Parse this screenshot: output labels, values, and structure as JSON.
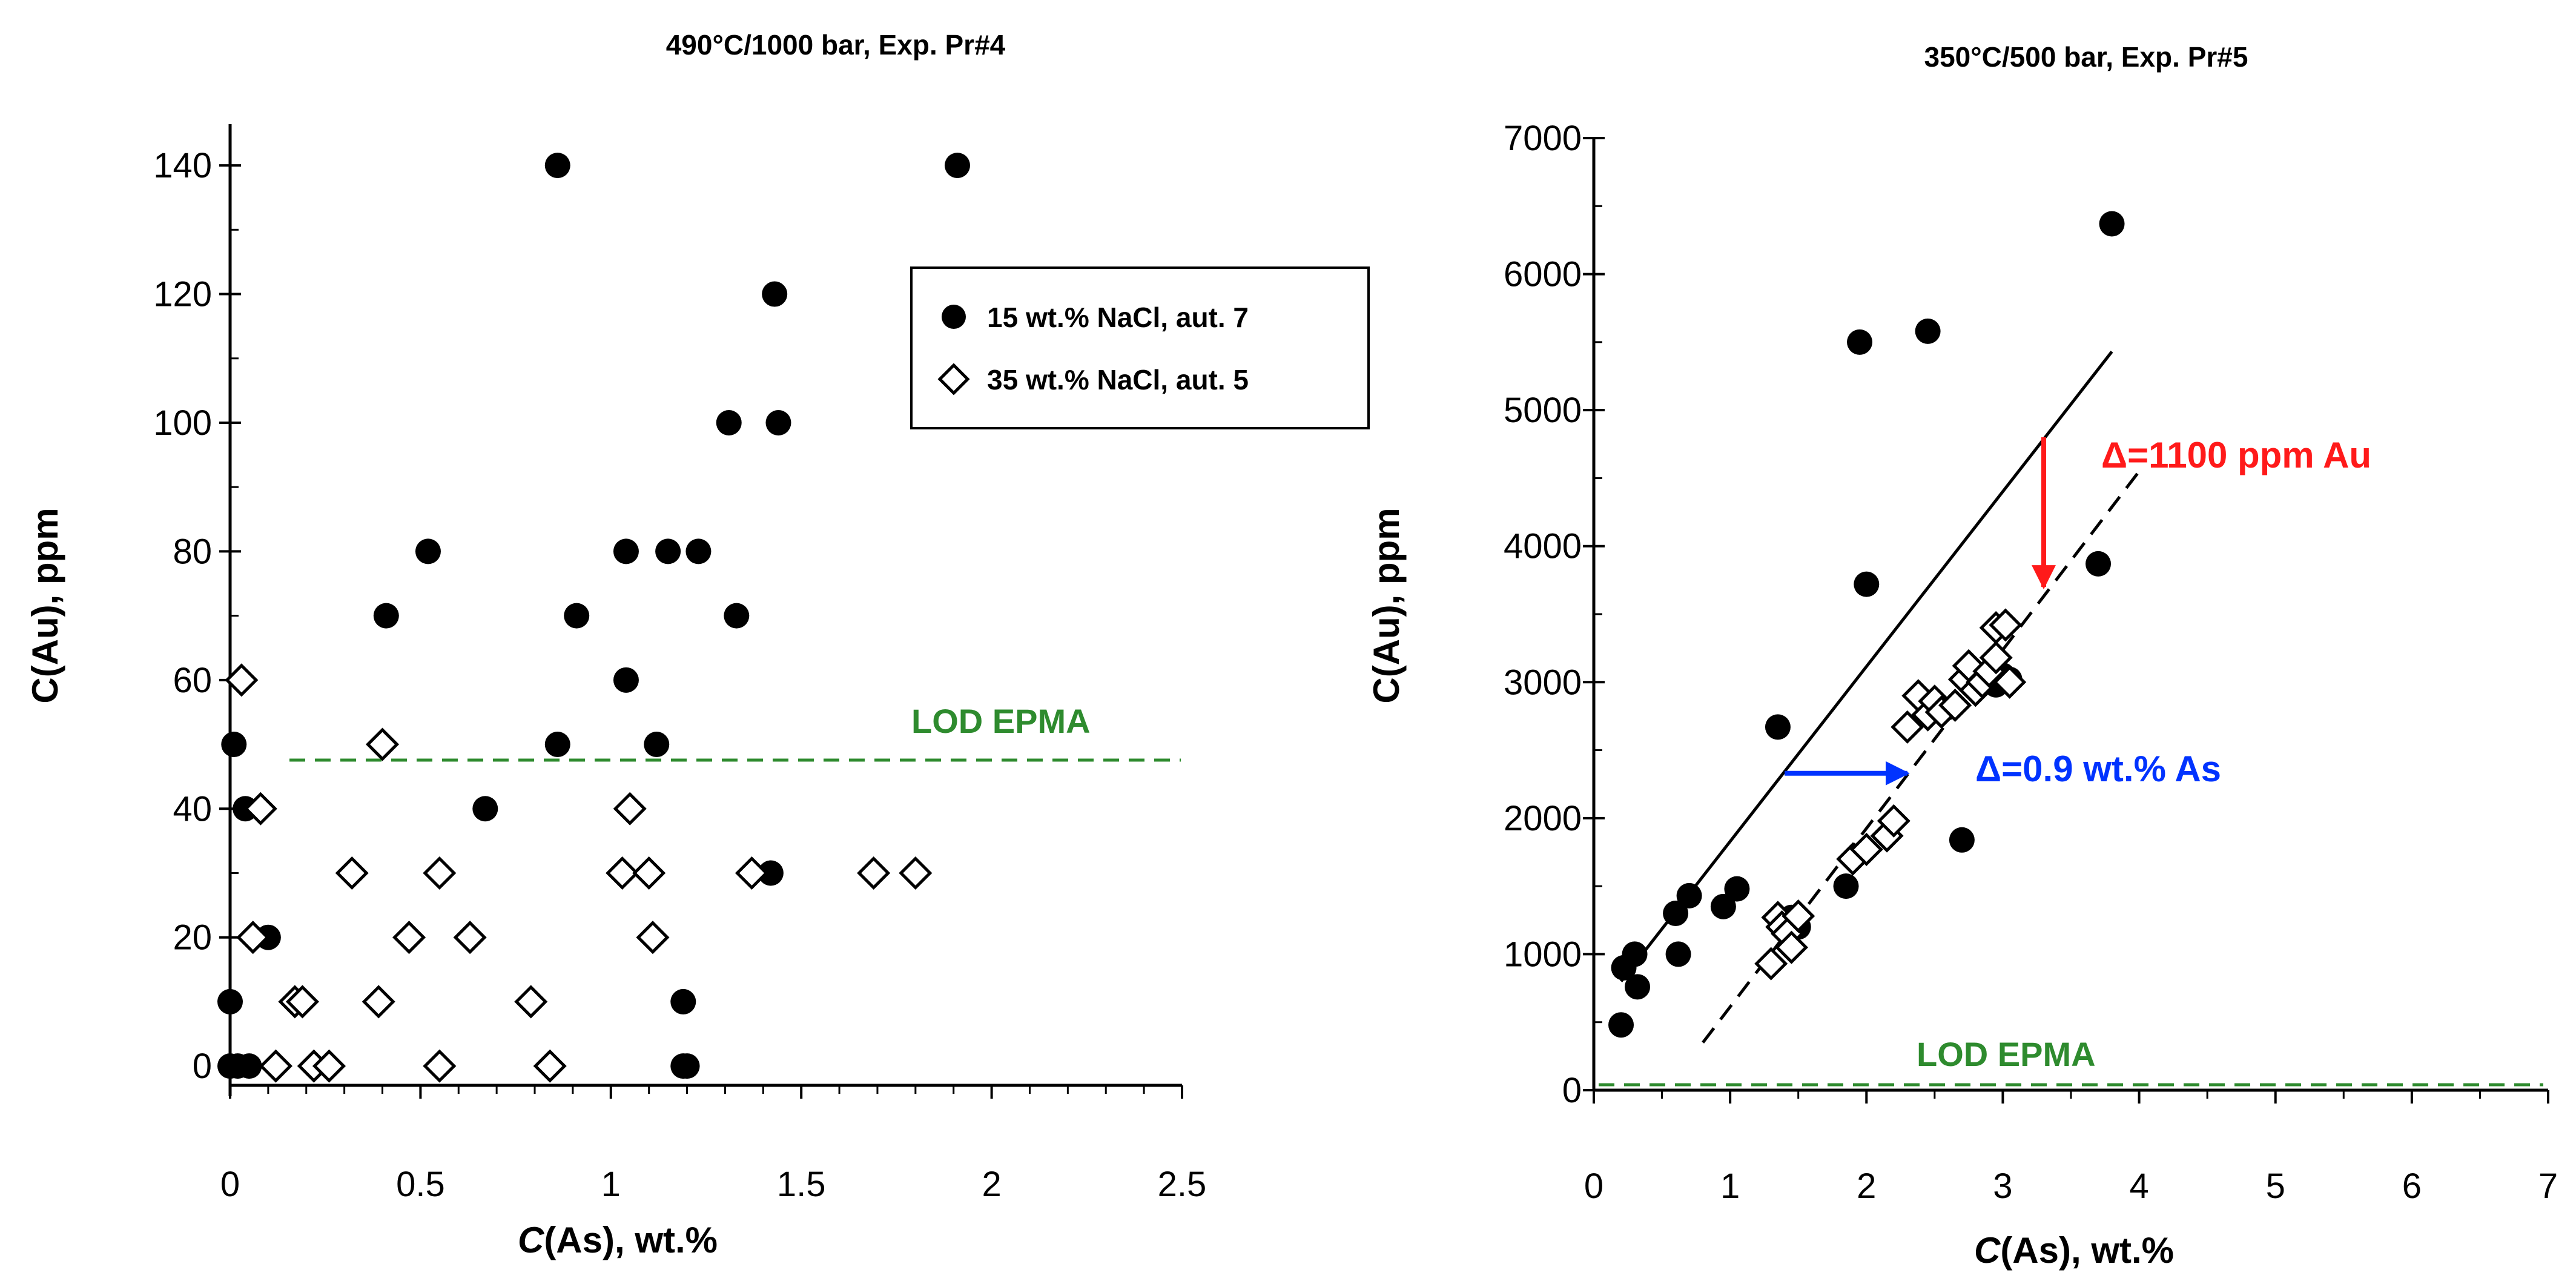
{
  "chart_data": [
    {
      "type": "scatter",
      "title": "490°C/1000 bar, Exp. Pr#4",
      "xlabel": {
        "italic": "C",
        "rest": "(As), wt.%"
      },
      "ylabel": "C(Au), ppm",
      "xlim": [
        0,
        2.5
      ],
      "ylim": [
        -3,
        145
      ],
      "xticks": [
        0,
        0.5,
        1,
        1.5,
        2,
        2.5
      ],
      "xtick_labels": [
        "0",
        "0.5",
        "1",
        "1.5",
        "2",
        "2.5"
      ],
      "yticks": [
        0,
        20,
        40,
        60,
        80,
        100,
        120,
        140
      ],
      "ytick_labels": [
        "0",
        "20",
        "40",
        "60",
        "80",
        "100",
        "120",
        "140"
      ],
      "legend": {
        "position": "upper-right",
        "entries": [
          {
            "marker": "filled-circle",
            "label": "15 wt.% NaCl, aut. 7"
          },
          {
            "marker": "open-diamond",
            "label": "35 wt.% NaCl, aut. 5"
          }
        ]
      },
      "lod": {
        "label": "LOD EPMA",
        "value": 48,
        "color": "#2e8b2e"
      },
      "series": [
        {
          "name": "15 wt.% NaCl, aut. 7",
          "marker": "filled-circle",
          "points": [
            [
              0,
              0
            ],
            [
              0.02,
              0
            ],
            [
              0.05,
              0
            ],
            [
              0,
              10
            ],
            [
              0.01,
              50
            ],
            [
              0.04,
              40
            ],
            [
              0.1,
              20
            ],
            [
              0.41,
              70
            ],
            [
              0.52,
              80
            ],
            [
              0.67,
              40
            ],
            [
              0.86,
              140
            ],
            [
              0.86,
              50
            ],
            [
              0.91,
              70
            ],
            [
              1.04,
              80
            ],
            [
              1.04,
              60
            ],
            [
              1.12,
              50
            ],
            [
              1.15,
              80
            ],
            [
              1.19,
              10
            ],
            [
              1.19,
              0
            ],
            [
              1.2,
              0
            ],
            [
              1.23,
              80
            ],
            [
              1.31,
              100
            ],
            [
              1.33,
              70
            ],
            [
              1.42,
              30
            ],
            [
              1.43,
              120
            ],
            [
              1.44,
              100
            ],
            [
              1.91,
              140
            ]
          ]
        },
        {
          "name": "35 wt.% NaCl, aut. 5",
          "marker": "open-diamond",
          "points": [
            [
              0.03,
              60
            ],
            [
              0.06,
              20
            ],
            [
              0.08,
              40
            ],
            [
              0.12,
              0
            ],
            [
              0.17,
              10
            ],
            [
              0.19,
              10
            ],
            [
              0.22,
              0
            ],
            [
              0.26,
              0
            ],
            [
              0.32,
              30
            ],
            [
              0.39,
              10
            ],
            [
              0.4,
              50
            ],
            [
              0.47,
              20
            ],
            [
              0.55,
              30
            ],
            [
              0.55,
              0
            ],
            [
              0.63,
              20
            ],
            [
              0.79,
              10
            ],
            [
              0.84,
              0
            ],
            [
              1.03,
              30
            ],
            [
              1.05,
              40
            ],
            [
              1.1,
              30
            ],
            [
              1.11,
              20
            ],
            [
              1.37,
              30
            ],
            [
              1.69,
              30
            ],
            [
              1.8,
              30
            ]
          ]
        }
      ]
    },
    {
      "type": "scatter",
      "title": "350°C/500 bar, Exp. Pr#5",
      "xlabel": {
        "italic": "C",
        "rest": "(As), wt.%"
      },
      "ylabel": "C(Au), ppm",
      "xlim": [
        0,
        7
      ],
      "ylim": [
        0,
        7000
      ],
      "xticks": [
        0,
        1,
        2,
        3,
        4,
        5,
        6,
        7
      ],
      "xtick_labels": [
        "0",
        "1",
        "2",
        "3",
        "4",
        "5",
        "6",
        "7"
      ],
      "yticks": [
        0,
        1000,
        2000,
        3000,
        4000,
        5000,
        6000,
        7000
      ],
      "ytick_labels": [
        "0",
        "1000",
        "2000",
        "3000",
        "4000",
        "5000",
        "6000",
        "7000"
      ],
      "lod": {
        "label": "LOD EPMA",
        "value": 40,
        "color": "#2e8b2e"
      },
      "series": [
        {
          "name": "filled circles",
          "marker": "filled-circle",
          "points": [
            [
              0.2,
              480
            ],
            [
              0.22,
              900
            ],
            [
              0.3,
              1000
            ],
            [
              0.32,
              760
            ],
            [
              0.6,
              1300
            ],
            [
              0.62,
              1000
            ],
            [
              0.7,
              1430
            ],
            [
              0.95,
              1350
            ],
            [
              1.05,
              1480
            ],
            [
              1.35,
              2670
            ],
            [
              1.45,
              1270
            ],
            [
              1.5,
              1200
            ],
            [
              1.85,
              1500
            ],
            [
              1.95,
              5500
            ],
            [
              2.0,
              3720
            ],
            [
              2.45,
              5580
            ],
            [
              2.7,
              1840
            ],
            [
              2.95,
              2980
            ],
            [
              3.0,
              3050
            ],
            [
              3.05,
              3020
            ],
            [
              3.7,
              3870
            ],
            [
              3.8,
              6370
            ]
          ]
        },
        {
          "name": "open diamonds",
          "marker": "open-diamond",
          "points": [
            [
              1.3,
              930
            ],
            [
              1.35,
              1270
            ],
            [
              1.38,
              1200
            ],
            [
              1.42,
              1150
            ],
            [
              1.45,
              1050
            ],
            [
              1.5,
              1280
            ],
            [
              1.9,
              1700
            ],
            [
              2.0,
              1770
            ],
            [
              2.15,
              1870
            ],
            [
              2.2,
              1980
            ],
            [
              2.3,
              2670
            ],
            [
              2.38,
              2900
            ],
            [
              2.45,
              2760
            ],
            [
              2.5,
              2860
            ],
            [
              2.55,
              2780
            ],
            [
              2.65,
              2830
            ],
            [
              2.72,
              3020
            ],
            [
              2.75,
              3120
            ],
            [
              2.8,
              2940
            ],
            [
              2.85,
              3000
            ],
            [
              2.9,
              3080
            ],
            [
              2.95,
              3180
            ],
            [
              2.95,
              3400
            ],
            [
              3.02,
              3420
            ],
            [
              3.05,
              3000
            ]
          ]
        }
      ],
      "lines": [
        {
          "name": "solid trend",
          "style": "solid",
          "from": [
            0.2,
            800
          ],
          "to": [
            3.8,
            5430
          ]
        },
        {
          "name": "dashed trend",
          "style": "dashed",
          "from": [
            0.8,
            350
          ],
          "to": [
            4.0,
            4550
          ]
        }
      ],
      "annotations": [
        {
          "name": "delta-au",
          "text": "Δ=1100 ppm Au",
          "color": "#ff1a1a",
          "arrow_from": [
            3.3,
            4800
          ],
          "arrow_to": [
            3.3,
            3700
          ]
        },
        {
          "name": "delta-as",
          "text": "Δ=0.9 wt.% As",
          "color": "#0033ff",
          "arrow_from": [
            1.4,
            2330
          ],
          "arrow_to": [
            2.3,
            2330
          ]
        }
      ]
    }
  ]
}
